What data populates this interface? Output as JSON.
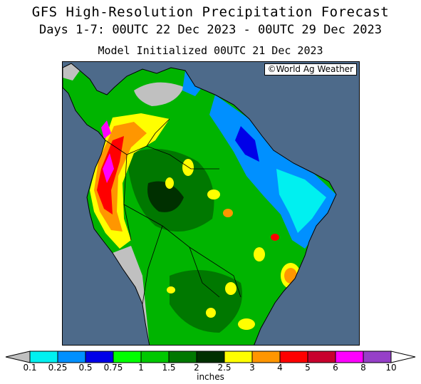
{
  "title": "GFS High-Resolution Precipitation Forecast",
  "subtitle": "Days 1-7: 00UTC 22 Dec 2023 - 00UTC 29 Dec 2023",
  "model_init": "Model Initialized 00UTC 21 Dec 2023",
  "copyright": "©World Ag Weather",
  "colors": {
    "ocean": "#4d6a8a",
    "no_precip_land": "#c0c0c0"
  },
  "legend": {
    "units": "inches",
    "ticks": [
      "0.1",
      "0.25",
      "0.5",
      "0.75",
      "1",
      "1.5",
      "2",
      "2.5",
      "3",
      "4",
      "5",
      "6",
      "8",
      "10"
    ],
    "colors": [
      "#00f0f0",
      "#0090ff",
      "#0000e8",
      "#00ff00",
      "#00c800",
      "#007800",
      "#003000",
      "#ffff00",
      "#ff9600",
      "#ff0000",
      "#c8002d",
      "#ff00ff",
      "#9640c8"
    ],
    "end_colors": {
      "below": "#c0c0c0",
      "above": "#ffffff"
    }
  }
}
